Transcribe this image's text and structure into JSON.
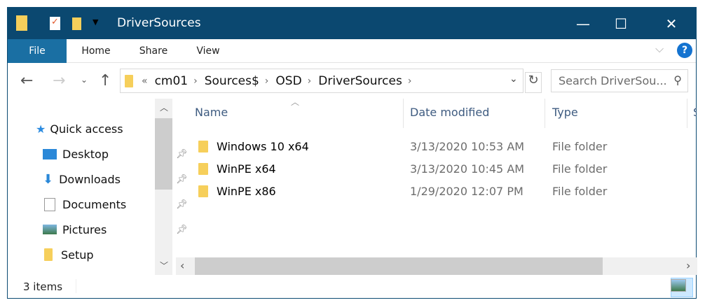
{
  "window": {
    "title": "DriverSources",
    "controls": {
      "minimize": "—",
      "maximize": "☐",
      "close": "✕"
    }
  },
  "ribbon": {
    "tabs": [
      "File",
      "Home",
      "Share",
      "View"
    ],
    "help": "?"
  },
  "address": {
    "overflow": "«",
    "crumbs": [
      "cm01",
      "Sources$",
      "OSD",
      "DriverSources"
    ]
  },
  "search": {
    "placeholder": "Search DriverSou..."
  },
  "nav": {
    "quick_access": "Quick access",
    "items": [
      {
        "label": "Desktop",
        "pinned": true
      },
      {
        "label": "Downloads",
        "pinned": true
      },
      {
        "label": "Documents",
        "pinned": true
      },
      {
        "label": "Pictures",
        "pinned": true
      },
      {
        "label": "Setup",
        "pinned": false
      }
    ]
  },
  "columns": {
    "name": "Name",
    "date": "Date modified",
    "type": "Type",
    "size": "S"
  },
  "files": [
    {
      "name": "Windows 10 x64",
      "date": "3/13/2020 10:53 AM",
      "type": "File folder"
    },
    {
      "name": "WinPE x64",
      "date": "3/13/2020 10:45 AM",
      "type": "File folder"
    },
    {
      "name": "WinPE x86",
      "date": "1/29/2020 12:07 PM",
      "type": "File folder"
    }
  ],
  "status": {
    "count": "3 items"
  },
  "colors": {
    "titlebar": "#0b4870",
    "file_tab": "#1a6fa3",
    "folder": "#f6cf5b"
  }
}
